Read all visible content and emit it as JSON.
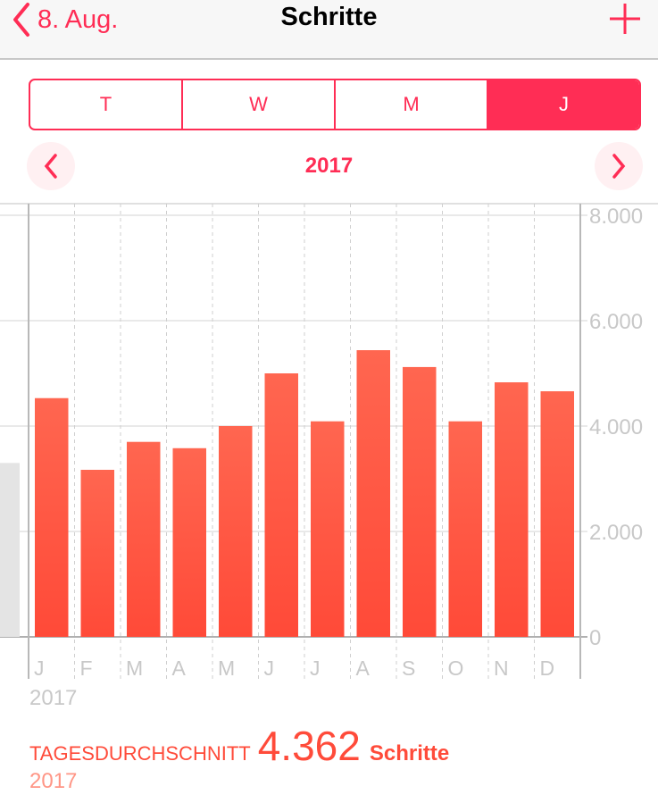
{
  "nav": {
    "back_label": "8. Aug.",
    "title": "Schritte",
    "add_icon": "plus-icon",
    "back_icon": "chevron-left-icon"
  },
  "segments": [
    {
      "label": "T",
      "active": false
    },
    {
      "label": "W",
      "active": false
    },
    {
      "label": "M",
      "active": false
    },
    {
      "label": "J",
      "active": true
    }
  ],
  "period": {
    "label": "2017",
    "prev_icon": "chevron-left-icon",
    "next_icon": "chevron-right-icon"
  },
  "colors": {
    "accent": "#ff2d55",
    "bar_top": "#ff6650",
    "bar_bottom": "#ff4a38",
    "previous_bar": "#e4e4e4"
  },
  "chart_data": {
    "type": "bar",
    "categories": [
      "J",
      "F",
      "M",
      "A",
      "M",
      "J",
      "J",
      "A",
      "S",
      "O",
      "N",
      "D"
    ],
    "values": [
      4530,
      3170,
      3700,
      3580,
      4000,
      5000,
      4090,
      5440,
      5120,
      4090,
      4830,
      4660
    ],
    "previous_period_value": 3300,
    "yticks": [
      "0",
      "2.000",
      "4.000",
      "6.000",
      "8.000"
    ],
    "ylim": [
      0,
      8000
    ],
    "xlabel": "2017",
    "grid": true
  },
  "summary": {
    "label": "TAGESDURCHSCHNITT",
    "value": "4.362",
    "unit": "Schritte",
    "period": "2017"
  }
}
